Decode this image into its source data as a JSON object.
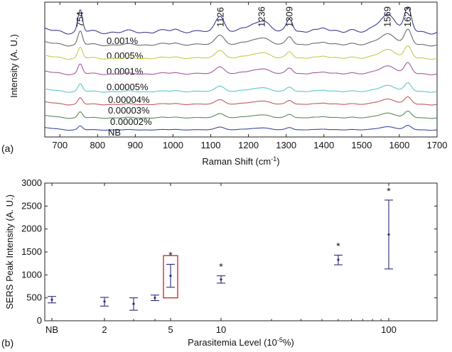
{
  "chart_data": [
    {
      "panel": "(a)",
      "type": "line",
      "xlabel": "Raman Shift (cm",
      "xlabel_sup": "-1",
      "xlabel_close": ")",
      "ylabel": "Intensity (A. U.)",
      "xlim": [
        660,
        1700
      ],
      "xticks": [
        700,
        800,
        900,
        1000,
        1100,
        1200,
        1300,
        1400,
        1500,
        1600,
        1700
      ],
      "peaks": [
        {
          "shift": 754,
          "label": "754"
        },
        {
          "shift": 1126,
          "label": "1126"
        },
        {
          "shift": 1236,
          "label": "1236"
        },
        {
          "shift": 1309,
          "label": "1309"
        },
        {
          "shift": 1569,
          "label": "1569"
        },
        {
          "shift": 1623,
          "label": "1623"
        }
      ],
      "series": [
        {
          "name": "0.001%",
          "color": "#3b3b8f",
          "scale": 1.0
        },
        {
          "name": "0.0005%",
          "color": "#6b6b6b",
          "scale": 0.62
        },
        {
          "name": "0.0001%",
          "color": "#c8c84a",
          "scale": 0.5
        },
        {
          "name": "0.00005%",
          "color": "#a05aa0",
          "scale": 0.45
        },
        {
          "name": "0.00004%",
          "color": "#5ac8c8",
          "scale": 0.35
        },
        {
          "name": "0.00003%",
          "color": "#c05a5a",
          "scale": 0.3
        },
        {
          "name": "0.00002%",
          "color": "#5a8a5a",
          "scale": 0.27
        },
        {
          "name": "NB",
          "color": "#3a4aa0",
          "scale": 0.18
        }
      ]
    },
    {
      "panel": "(b)",
      "type": "scatter",
      "xlabel": "Parasitemia Level (10",
      "xlabel_sup": "-5",
      "xlabel_close": "%)",
      "ylabel": "SERS Peak Intensity (A. U.)",
      "ylim": [
        0,
        3000
      ],
      "yticks": [
        0,
        500,
        1000,
        1500,
        2000,
        2500,
        3000
      ],
      "xticks": [
        {
          "label": "NB",
          "value": 1
        },
        {
          "label": "2",
          "value": 2
        },
        {
          "label": "5",
          "value": 5
        },
        {
          "label": "10",
          "value": 10
        },
        {
          "label": "100",
          "value": 100
        }
      ],
      "points": [
        {
          "x": 1,
          "y": 460,
          "low": 390,
          "high": 530,
          "sig": false,
          "highlight": false
        },
        {
          "x": 2,
          "y": 420,
          "low": 320,
          "high": 510,
          "sig": false,
          "highlight": false
        },
        {
          "x": 3,
          "y": 370,
          "low": 230,
          "high": 500,
          "sig": false,
          "highlight": false
        },
        {
          "x": 4,
          "y": 500,
          "low": 440,
          "high": 560,
          "sig": false,
          "highlight": false
        },
        {
          "x": 5,
          "y": 980,
          "low": 730,
          "high": 1230,
          "sig": true,
          "highlight": true
        },
        {
          "x": 10,
          "y": 900,
          "low": 820,
          "high": 980,
          "sig": true,
          "highlight": false
        },
        {
          "x": 50,
          "y": 1330,
          "low": 1220,
          "high": 1430,
          "sig": true,
          "highlight": false
        },
        {
          "x": 100,
          "y": 1880,
          "low": 1130,
          "high": 2630,
          "sig": true,
          "highlight": false
        }
      ],
      "significance_marker": "*"
    }
  ]
}
